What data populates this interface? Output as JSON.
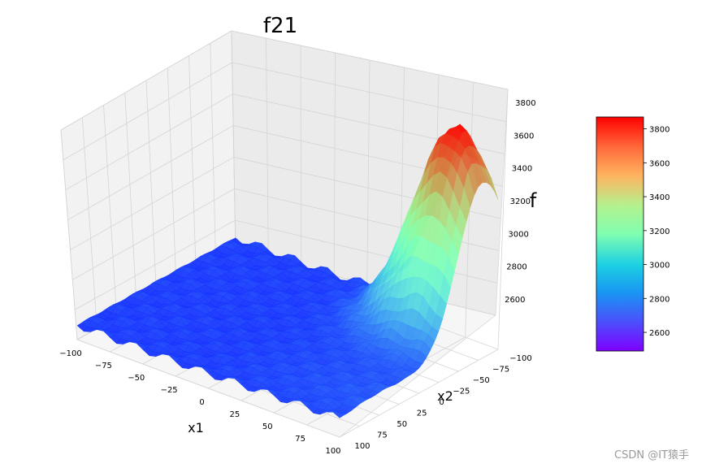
{
  "chart_data": {
    "type": "surface3d",
    "title": "f21",
    "xlabel": "x1",
    "ylabel": "x2",
    "zlabel": "f",
    "x_ticks": [
      "−100",
      "−75",
      "−50",
      "−25",
      "0",
      "25",
      "50",
      "75",
      "100"
    ],
    "y_ticks": [
      "−100",
      "−75",
      "−50",
      "−25",
      "0",
      "25",
      "50",
      "75",
      "100"
    ],
    "z_ticks": [
      "2600",
      "2800",
      "3000",
      "3200",
      "3400",
      "3600",
      "3800"
    ],
    "colorbar_ticks": [
      "2600",
      "2800",
      "3000",
      "3200",
      "3400",
      "3600",
      "3800"
    ],
    "xlim": [
      -100,
      100
    ],
    "ylim": [
      -100,
      100
    ],
    "zlim": [
      2500,
      3880
    ],
    "colormap": "rainbow",
    "surface": {
      "base_level": 2590,
      "peak_level": 3850,
      "peak_location": [
        100,
        -100
      ]
    }
  },
  "watermark": "CSDN @IT猿手"
}
